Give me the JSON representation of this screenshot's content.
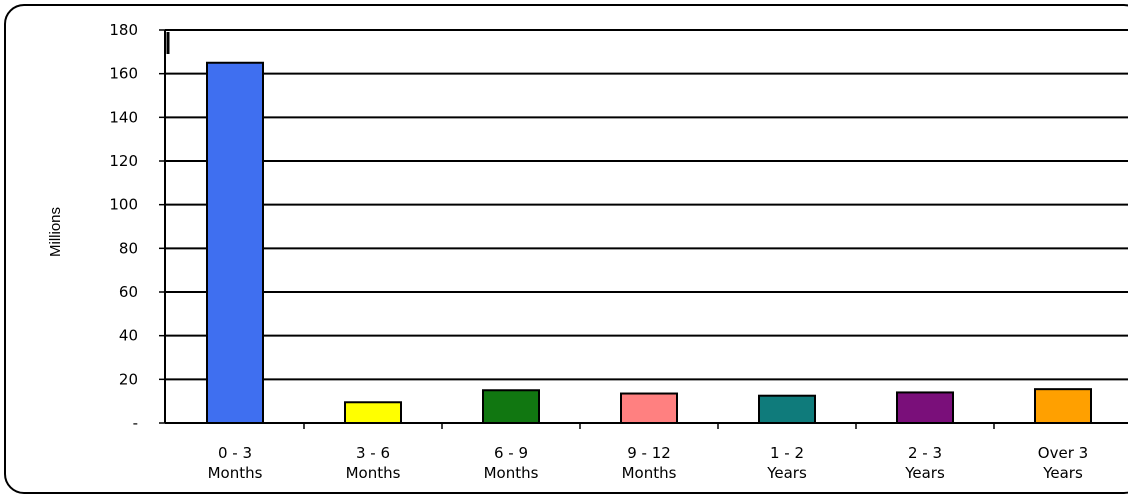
{
  "chart_data": {
    "type": "bar",
    "ylabel": "Millions",
    "xlabel": "",
    "ylim": [
      0,
      180
    ],
    "ytick_values": [
      0,
      20,
      40,
      60,
      80,
      100,
      120,
      140,
      160,
      180
    ],
    "ytick_labels": [
      "-",
      "20",
      "40",
      "60",
      "80",
      "100",
      "120",
      "140",
      "160",
      "180"
    ],
    "categories": [
      {
        "line1": "0 - 3",
        "line2": "Months"
      },
      {
        "line1": "3 - 6",
        "line2": "Months"
      },
      {
        "line1": "6 - 9",
        "line2": "Months"
      },
      {
        "line1": "9 - 12",
        "line2": "Months"
      },
      {
        "line1": "1 - 2",
        "line2": "Years"
      },
      {
        "line1": "2 - 3",
        "line2": "Years"
      },
      {
        "line1": "Over 3",
        "line2": "Years"
      }
    ],
    "values": [
      165,
      9.5,
      15,
      13.5,
      12.5,
      14,
      15.5
    ],
    "colors": [
      "#3f6ff0",
      "#ffff00",
      "#117711",
      "#ff8080",
      "#0f7b7b",
      "#7a0f7a",
      "#ffa000"
    ],
    "grid": true,
    "legend": "none"
  }
}
